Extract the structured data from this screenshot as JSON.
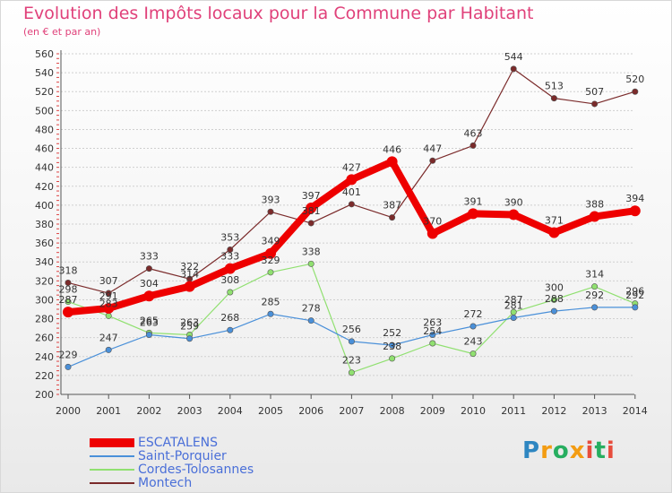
{
  "header": {
    "title": "Evolution des Impôts locaux pour la Commune par Habitant",
    "subtitle": "(en € et par an)"
  },
  "logo": {
    "text": "Proxiti"
  },
  "chart_data": {
    "type": "line",
    "title": "Evolution des Impôts locaux pour la Commune par Habitant",
    "subtitle": "(en € et par an)",
    "xlabel": "",
    "ylabel": "",
    "x": [
      "2000",
      "2001",
      "2002",
      "2003",
      "2004",
      "2005",
      "2006",
      "2007",
      "2008",
      "2009",
      "2010",
      "2011",
      "2012",
      "2013",
      "2014"
    ],
    "ylim": [
      200,
      560
    ],
    "yticks": [
      200,
      220,
      240,
      260,
      280,
      300,
      320,
      340,
      360,
      380,
      400,
      420,
      440,
      460,
      480,
      500,
      520,
      540,
      560
    ],
    "grid": "horizontal-dashed",
    "legend_position": "bottom-left",
    "series": [
      {
        "name": "ESCATALENS",
        "color": "#ee0000",
        "values": [
          287,
          291,
          304,
          314,
          333,
          349,
          397,
          427,
          446,
          370,
          391,
          390,
          371,
          388,
          394
        ]
      },
      {
        "name": "Saint-Porquier",
        "color": "#4a90d9",
        "values": [
          229,
          247,
          263,
          259,
          268,
          285,
          278,
          256,
          252,
          263,
          272,
          281,
          288,
          292,
          292
        ]
      },
      {
        "name": "Cordes-Tolosannes",
        "color": "#90e070",
        "values": [
          298,
          283,
          265,
          263,
          308,
          329,
          338,
          223,
          238,
          254,
          243,
          287,
          300,
          314,
          296
        ]
      },
      {
        "name": "Montech",
        "color": "#7b2b2b",
        "values": [
          318,
          307,
          333,
          322,
          353,
          393,
          381,
          401,
          387,
          447,
          463,
          544,
          513,
          507,
          520
        ]
      }
    ]
  }
}
